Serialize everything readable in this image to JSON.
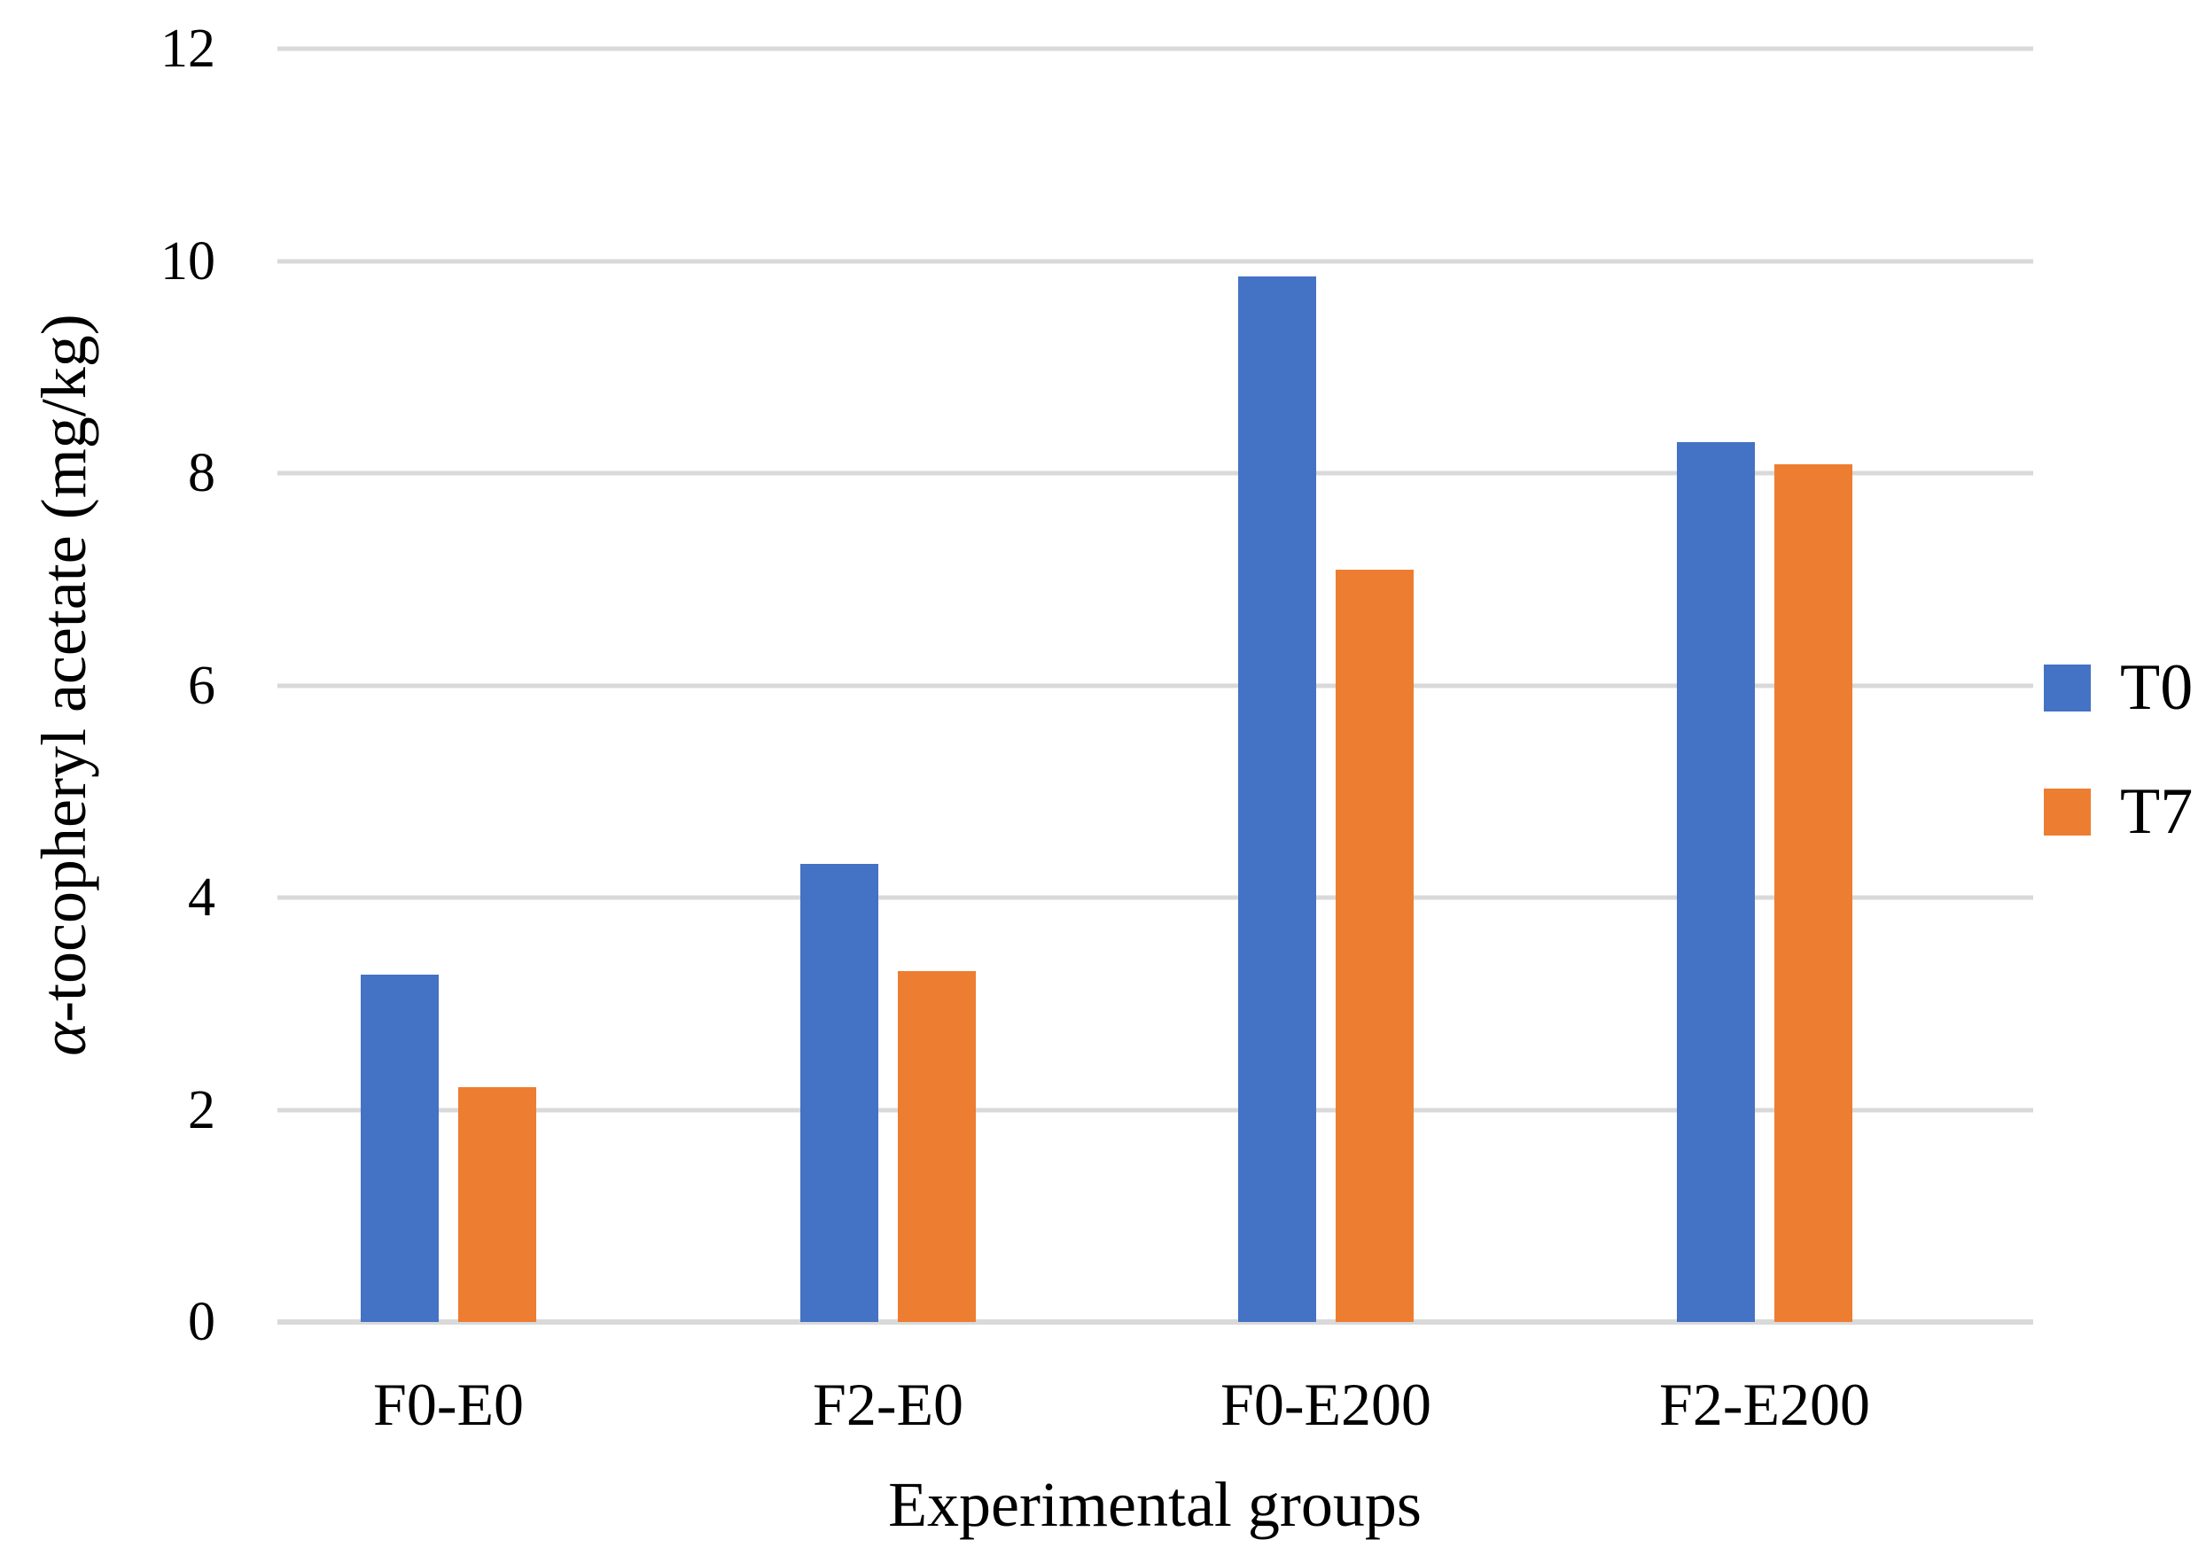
{
  "figure": {
    "background": "#FFFFFF",
    "ylabel_alpha": "α",
    "ylabel_rest": "-tocopheryl acetate (mg/kg)",
    "xlabel": "Experimental groups"
  },
  "chart_data": {
    "type": "bar",
    "categories": [
      "F0-E0",
      "F2-E0",
      "F0-E200",
      "F2-E200"
    ],
    "series": [
      {
        "name": "T0",
        "color": "#4472C4",
        "values": [
          3.27,
          4.32,
          9.85,
          8.29
        ]
      },
      {
        "name": "T7",
        "color": "#ED7D31",
        "values": [
          2.21,
          3.31,
          7.09,
          8.08
        ]
      }
    ],
    "xlabel": "Experimental groups",
    "ylabel": "α-tocopheryl acetate (mg/kg)",
    "ylim": [
      0,
      12
    ],
    "yticks": [
      12,
      10,
      8,
      6,
      4,
      2,
      0
    ],
    "grid": "horizontal",
    "gridline_color": "#D9D9D9",
    "legend_position": "right",
    "legend": [
      "T0",
      "T7"
    ]
  }
}
